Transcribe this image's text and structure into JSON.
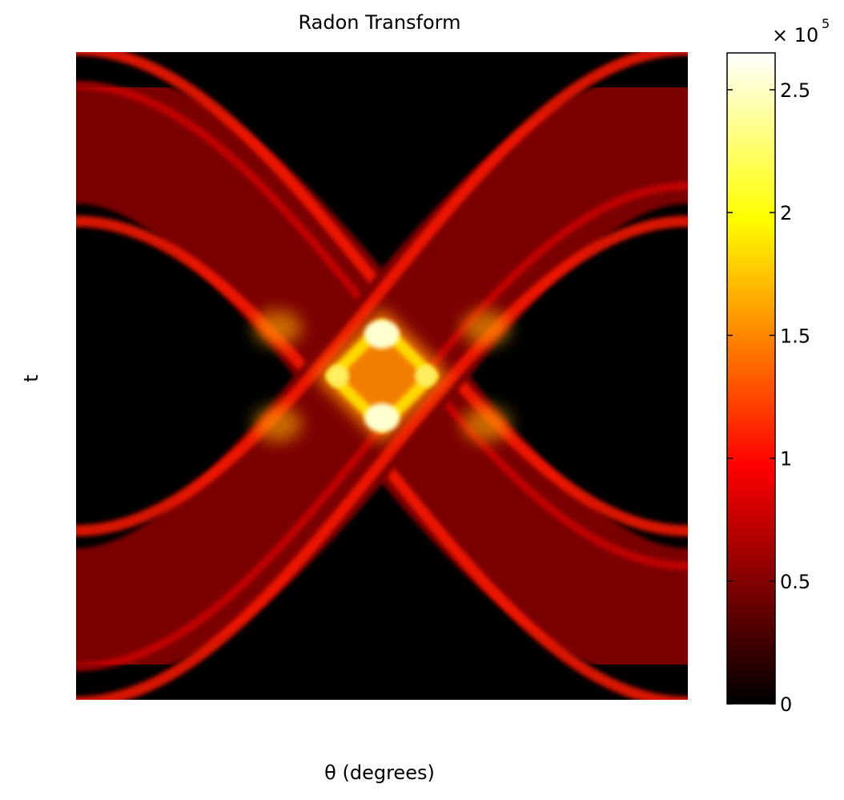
{
  "chart_data": {
    "type": "heatmap",
    "title": "Radon Transform",
    "xlabel": "θ (degrees)",
    "ylabel": "t",
    "x_ticks_visible": false,
    "y_ticks_visible": false,
    "colormap": "hot",
    "colorbar": {
      "exponent_label": "× 10",
      "exponent_power": "5",
      "range": [
        0,
        2.65
      ],
      "ticks": [
        0,
        0.5,
        1,
        1.5,
        2,
        2.5
      ],
      "tick_labels": [
        "0",
        "0.5",
        "1",
        "1.5",
        "2",
        "2.5"
      ],
      "placement": "right"
    },
    "description_of_values": "Sinogram of a rectangular phantom: horizontal bands at constant t plus two crossing sinusoidal bands, brightest where they intersect near the center"
  }
}
